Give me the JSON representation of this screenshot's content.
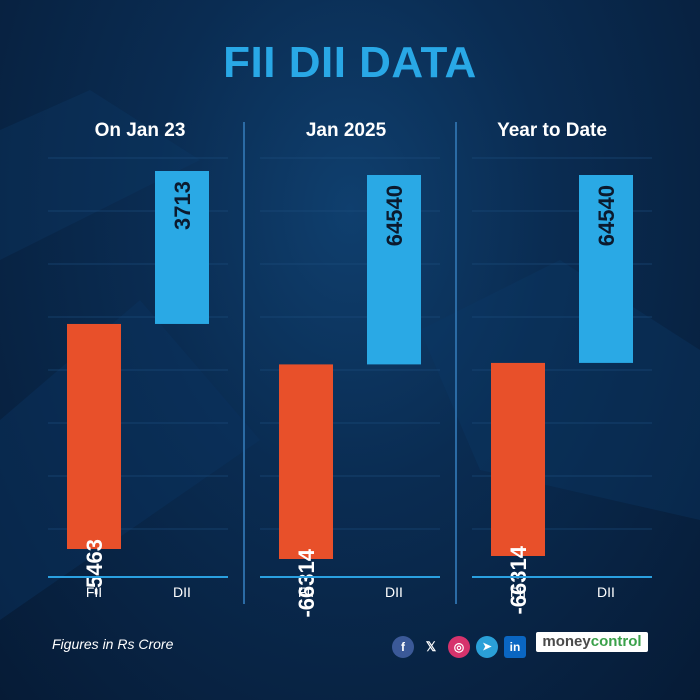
{
  "title": "FII DII DATA",
  "footer_note": "Figures in Rs Crore",
  "social": {
    "facebook": "f",
    "x": "𝕏",
    "instagram": "◎",
    "telegram": "➤",
    "linkedin": "in"
  },
  "brand": {
    "part1": "money",
    "part2": "control"
  },
  "colors": {
    "fii": "#e8502a",
    "dii": "#2aa9e5",
    "accent": "#29a8e6"
  },
  "chart_data": [
    {
      "type": "bar",
      "title": "On Jan 23",
      "categories": [
        "FII",
        "DII"
      ],
      "values": [
        -5463,
        3713
      ]
    },
    {
      "type": "bar",
      "title": "Jan 2025",
      "categories": [
        "FII",
        "DII"
      ],
      "values": [
        -66314,
        64540
      ]
    },
    {
      "type": "bar",
      "title": "Year to Date",
      "categories": [
        "FII",
        "DII"
      ],
      "values": [
        -66314,
        64540
      ]
    }
  ]
}
